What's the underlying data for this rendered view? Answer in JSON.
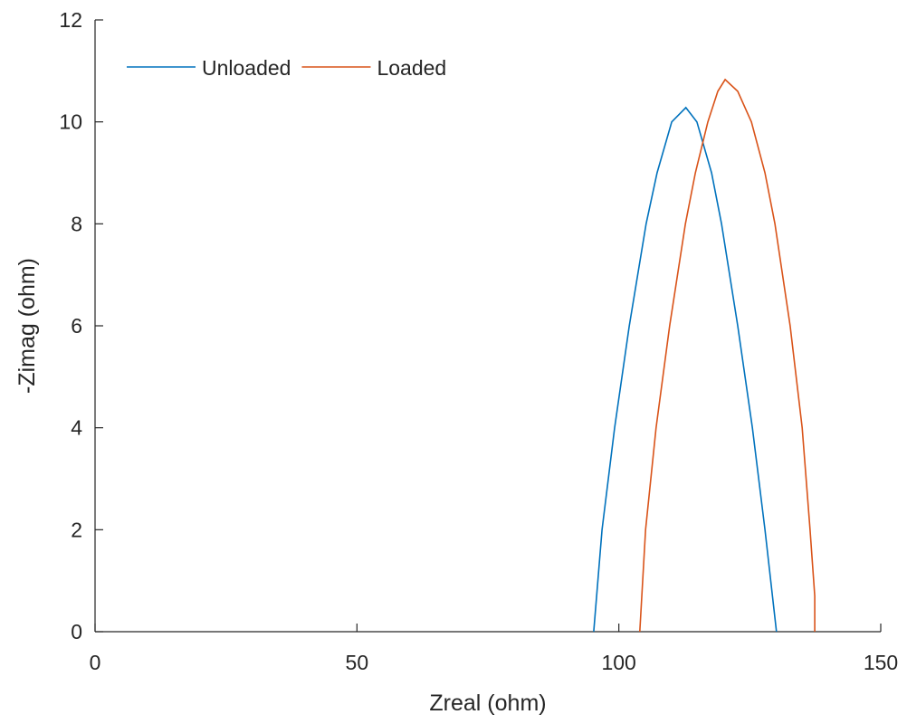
{
  "chart_data": {
    "type": "line",
    "xlabel": "Zreal (ohm)",
    "ylabel": "-Zimag (ohm)",
    "xlim": [
      0,
      150
    ],
    "xticks": [
      0,
      50,
      100,
      150
    ],
    "ylim": [
      0,
      12
    ],
    "yticks": [
      0,
      2,
      4,
      6,
      8,
      10,
      12
    ],
    "legend": "northwest",
    "series": [
      {
        "name": "Unloaded",
        "color": "#0072BD",
        "x": [
          95.2,
          96.8,
          99.2,
          102.0,
          105.2,
          107.3,
          110.1,
          112.8,
          114.9,
          117.7,
          119.6,
          122.7,
          125.5,
          127.9,
          130.1
        ],
        "values": [
          0,
          2,
          4,
          6,
          8,
          9,
          10,
          10.28,
          10,
          9,
          8,
          6,
          4,
          2,
          0
        ]
      },
      {
        "name": "Loaded",
        "color": "#D95319",
        "x": [
          104.0,
          105.1,
          107.1,
          109.7,
          112.7,
          114.6,
          117.0,
          118.9,
          120.3,
          122.7,
          125.3,
          127.9,
          129.8,
          132.7,
          135.0,
          136.5,
          137.4,
          137.4
        ],
        "values": [
          0,
          2,
          4,
          6,
          8,
          9,
          10,
          10.6,
          10.83,
          10.6,
          10,
          9,
          8,
          6,
          4,
          2,
          0.7,
          0
        ]
      }
    ]
  }
}
